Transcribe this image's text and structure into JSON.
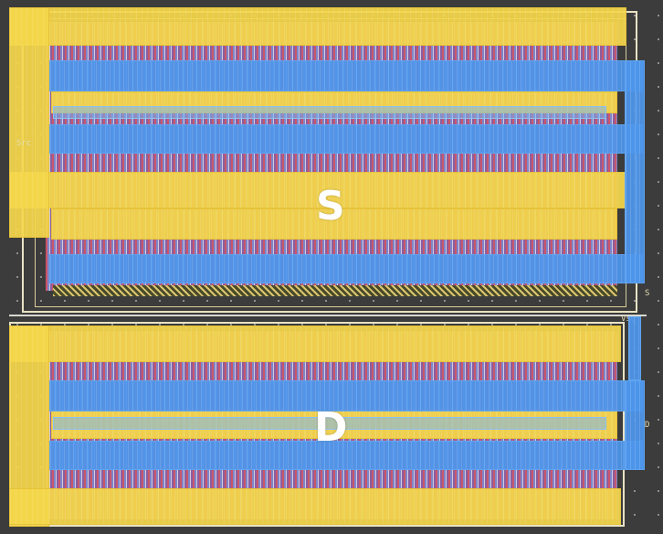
{
  "layout": {
    "labels": {
      "source": "S",
      "drain": "D"
    },
    "pins": {
      "top_right": "S",
      "mid_right": "Vsg",
      "bottom_right": "D",
      "left_side": "Src"
    }
  },
  "colors": {
    "background": "#3c3c3c",
    "metal1_yellow": "#f3d64a",
    "metal2_blue": "#4e96ec",
    "poly_fingers": "#c9566b",
    "frame": "#e8e2c4"
  }
}
